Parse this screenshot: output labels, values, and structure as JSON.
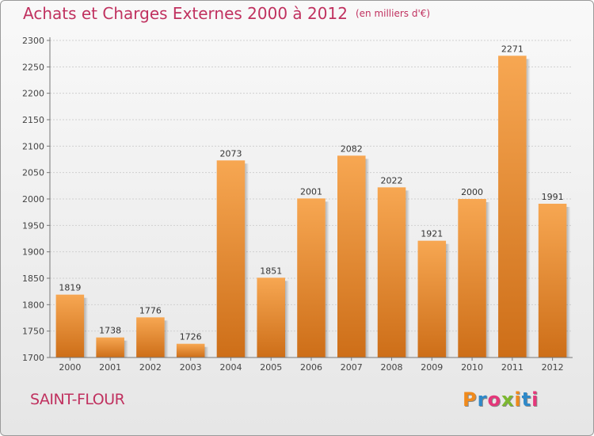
{
  "header": {
    "title": "Achats et Charges Externes 2000 à 2012",
    "unit": "(en milliers d'€)"
  },
  "footer": {
    "commune": "SAINT-FLOUR",
    "logo": "Proxiti"
  },
  "colors": {
    "bar_top": "#f7a752",
    "bar_bottom": "#cd6e18",
    "title": "#c0315f",
    "grid": "#d0d0d0"
  },
  "chart_data": {
    "type": "bar",
    "categories": [
      "2000",
      "2001",
      "2002",
      "2003",
      "2004",
      "2005",
      "2006",
      "2007",
      "2008",
      "2009",
      "2010",
      "2011",
      "2012"
    ],
    "values": [
      1819,
      1738,
      1776,
      1726,
      2073,
      1851,
      2001,
      2082,
      2022,
      1921,
      2000,
      2271,
      1991
    ],
    "title": "Achats et Charges Externes 2000 à 2012",
    "ylim": [
      1700,
      2300
    ],
    "yticks": [
      1700,
      1750,
      1800,
      1850,
      1900,
      1950,
      2000,
      2050,
      2100,
      2150,
      2200,
      2250,
      2300
    ],
    "grid": true,
    "data_labels": true
  }
}
